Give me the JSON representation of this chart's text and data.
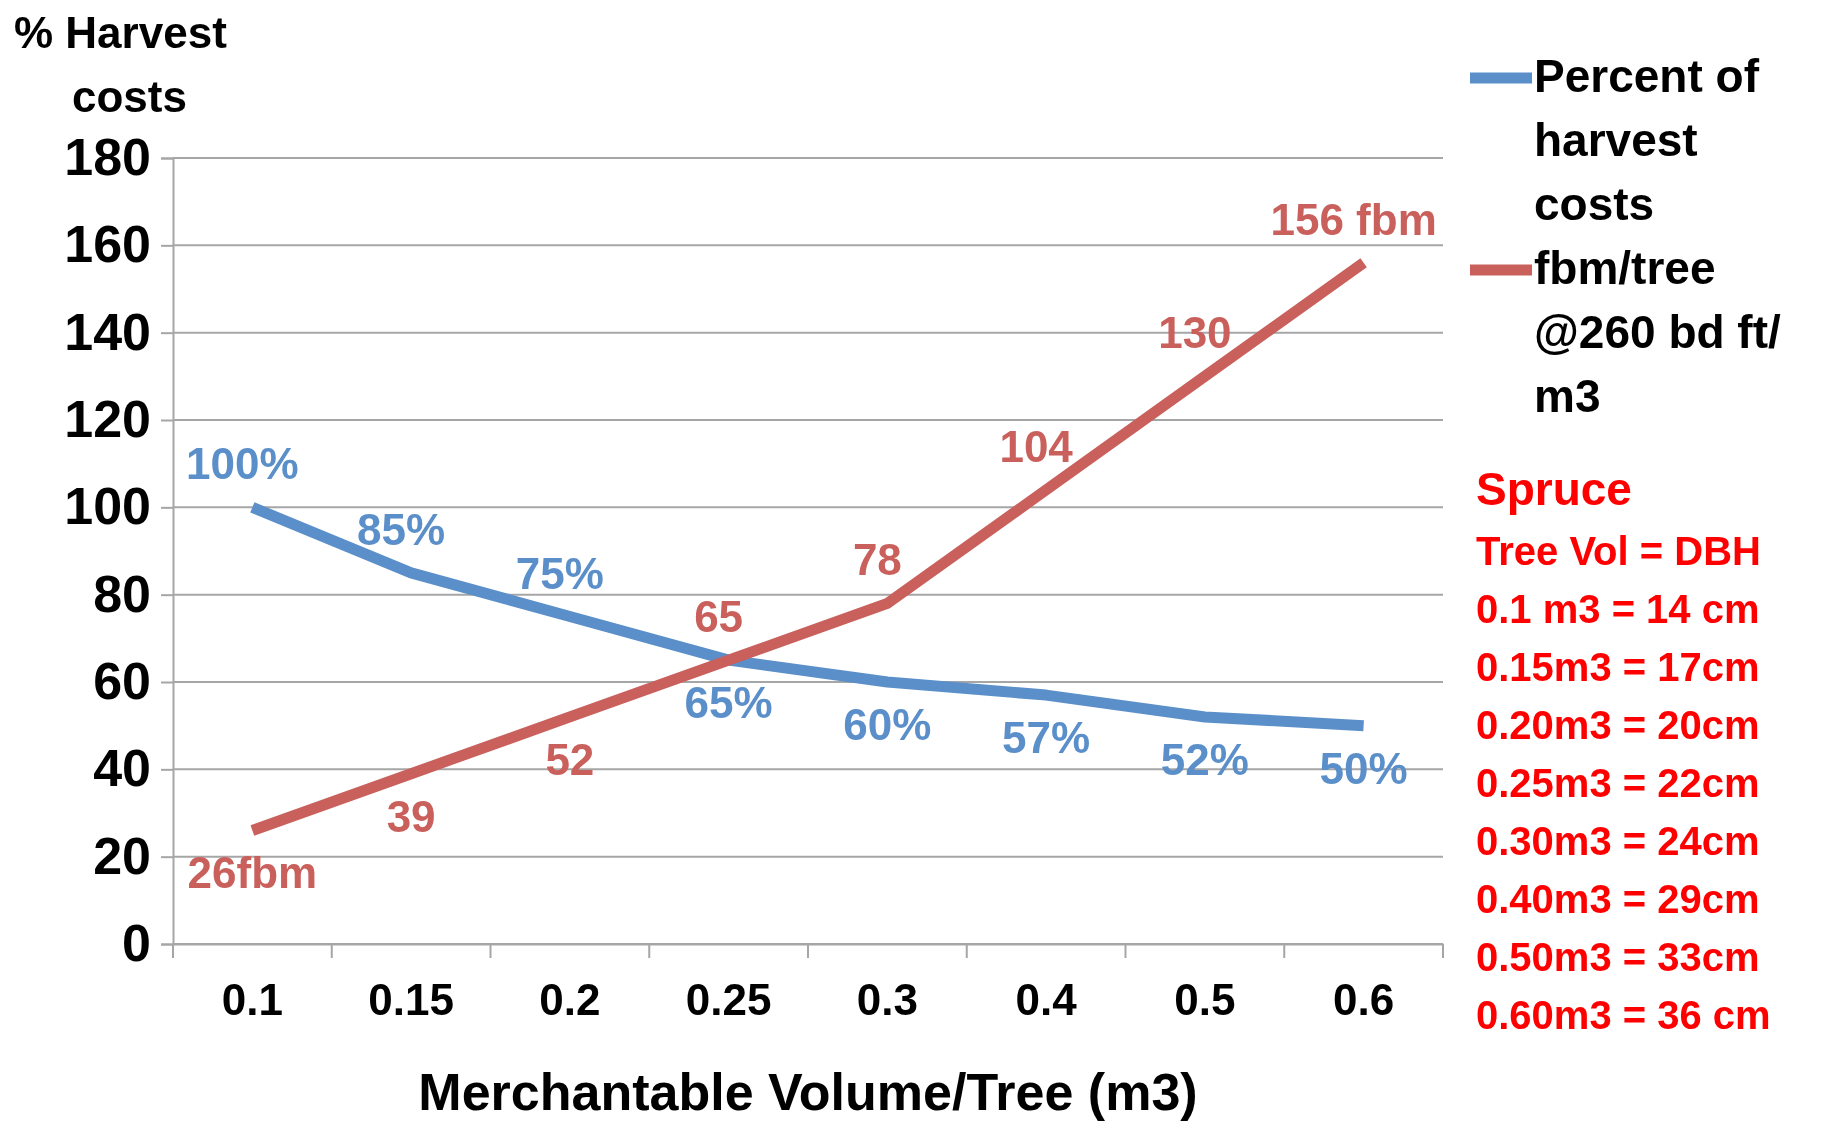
{
  "chart_data": {
    "type": "line",
    "ylabel": "% Harvest costs",
    "xlabel": "Merchantable Volume/Tree (m3)",
    "categories": [
      "0.1",
      "0.15",
      "0.2",
      "0.25",
      "0.3",
      "0.4",
      "0.5",
      "0.6"
    ],
    "ylim": [
      0,
      180
    ],
    "yticks": [
      0,
      20,
      40,
      60,
      80,
      100,
      120,
      140,
      160,
      180
    ],
    "grid": "y",
    "legend": "top right",
    "marker": "none",
    "line_style": "solid",
    "series": [
      {
        "name": "Percent of harvest costs",
        "color": "#5b8fc9",
        "values": [
          100,
          85,
          75,
          65,
          60,
          57,
          52,
          50
        ],
        "value_labels": [
          "100%",
          "85%",
          "75%",
          "65%",
          "60%",
          "57%",
          "52%",
          "50%"
        ]
      },
      {
        "name": "fbm/tree @260 bd ft/ m3",
        "color": "#c9605c",
        "values": [
          26,
          39,
          52,
          65,
          78,
          104,
          130,
          156
        ],
        "value_labels": [
          "26fbm",
          "39",
          "52",
          "65",
          "78",
          "104",
          "130",
          "156 fbm"
        ]
      }
    ],
    "annotations": [
      "Spruce",
      "Tree Vol = DBH",
      "0.1 m3 = 14 cm",
      "0.15m3 = 17cm",
      "0.20m3 = 20cm",
      "0.25m3 = 22cm",
      "0.30m3 = 24cm",
      "0.40m3 = 29cm",
      "0.50m3 = 33cm",
      "0.60m3 = 36 cm"
    ]
  }
}
